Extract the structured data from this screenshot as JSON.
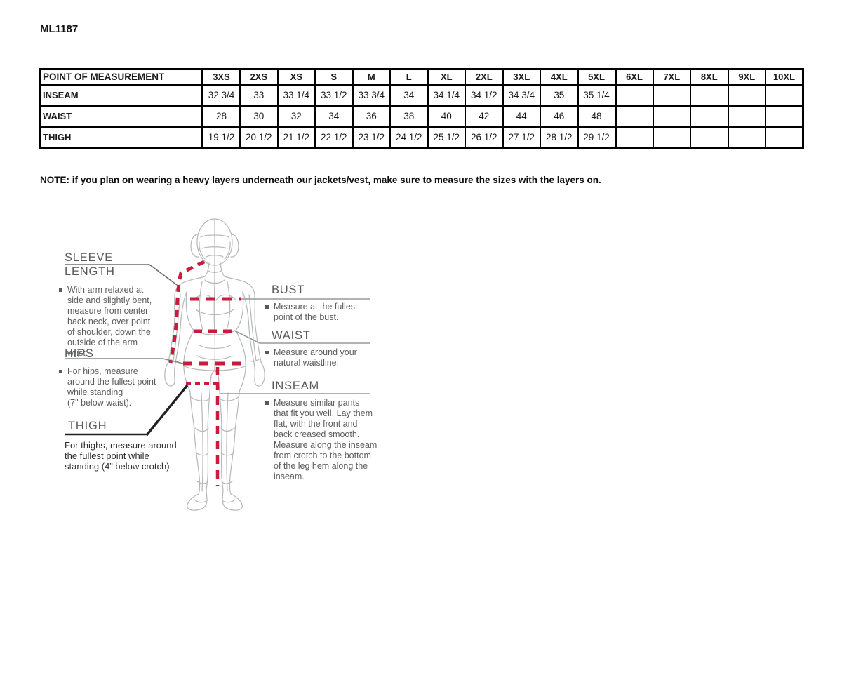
{
  "page": {
    "title": "ML1187",
    "note": "NOTE: if you plan on wearing a heavy layers underneath our jackets/vest, make sure to measure the sizes with the layers on."
  },
  "table": {
    "header": [
      "POINT OF MEASUREMENT",
      "3XS",
      "2XS",
      "XS",
      "S",
      "M",
      "L",
      "XL",
      "2XL",
      "3XL",
      "4XL",
      "5XL",
      "6XL",
      "7XL",
      "8XL",
      "9XL",
      "10XL"
    ],
    "rows": [
      {
        "label": "INSEAM",
        "values": [
          "32 3/4",
          "33",
          "33 1/4",
          "33 1/2",
          "33 3/4",
          "34",
          "34 1/4",
          "34 1/2",
          "34 3/4",
          "35",
          "35 1/4",
          "",
          "",
          "",
          "",
          ""
        ]
      },
      {
        "label": "WAIST",
        "values": [
          "28",
          "30",
          "32",
          "34",
          "36",
          "38",
          "40",
          "42",
          "44",
          "46",
          "48",
          "",
          "",
          "",
          "",
          ""
        ]
      },
      {
        "label": "THIGH",
        "values": [
          "19 1/2",
          "20 1/2",
          "21 1/2",
          "22 1/2",
          "23 1/2",
          "24 1/2",
          "25 1/2",
          "26 1/2",
          "27 1/2",
          "28 1/2",
          "29 1/2",
          "",
          "",
          "",
          "",
          ""
        ]
      }
    ]
  },
  "diagram": {
    "sleeve_length": {
      "heading": "SLEEVE LENGTH",
      "body": [
        "With arm relaxed at",
        "side and slightly bent,",
        "measure from center",
        "back neck, over point",
        "of shoulder, down the",
        "outside of the arm",
        "wrist."
      ]
    },
    "hips": {
      "heading": "HIPS",
      "body": [
        "For hips, measure",
        "around the fullest point",
        "while standing",
        "(7\" below waist)."
      ]
    },
    "thigh": {
      "heading": "THIGH",
      "body": [
        "For thighs, measure around",
        "the fullest point while",
        "standing (4” below crotch)"
      ]
    },
    "bust": {
      "heading": "BUST",
      "body": [
        "Measure at the fullest",
        "point of the bust."
      ]
    },
    "waist": {
      "heading": "WAIST",
      "body": [
        "Measure around your",
        "natural waistline."
      ]
    },
    "inseam": {
      "heading": "INSEAM",
      "body": [
        "Measure similar pants",
        "that fit you well. Lay them",
        "flat, with the front and",
        "back creased smooth.",
        "Measure along the inseam",
        "from crotch to the bottom",
        "of the leg hem along the",
        "inseam."
      ]
    },
    "colors": {
      "dash_red": "#cb1a3c",
      "figure_gray": "#b5b7b9"
    }
  }
}
